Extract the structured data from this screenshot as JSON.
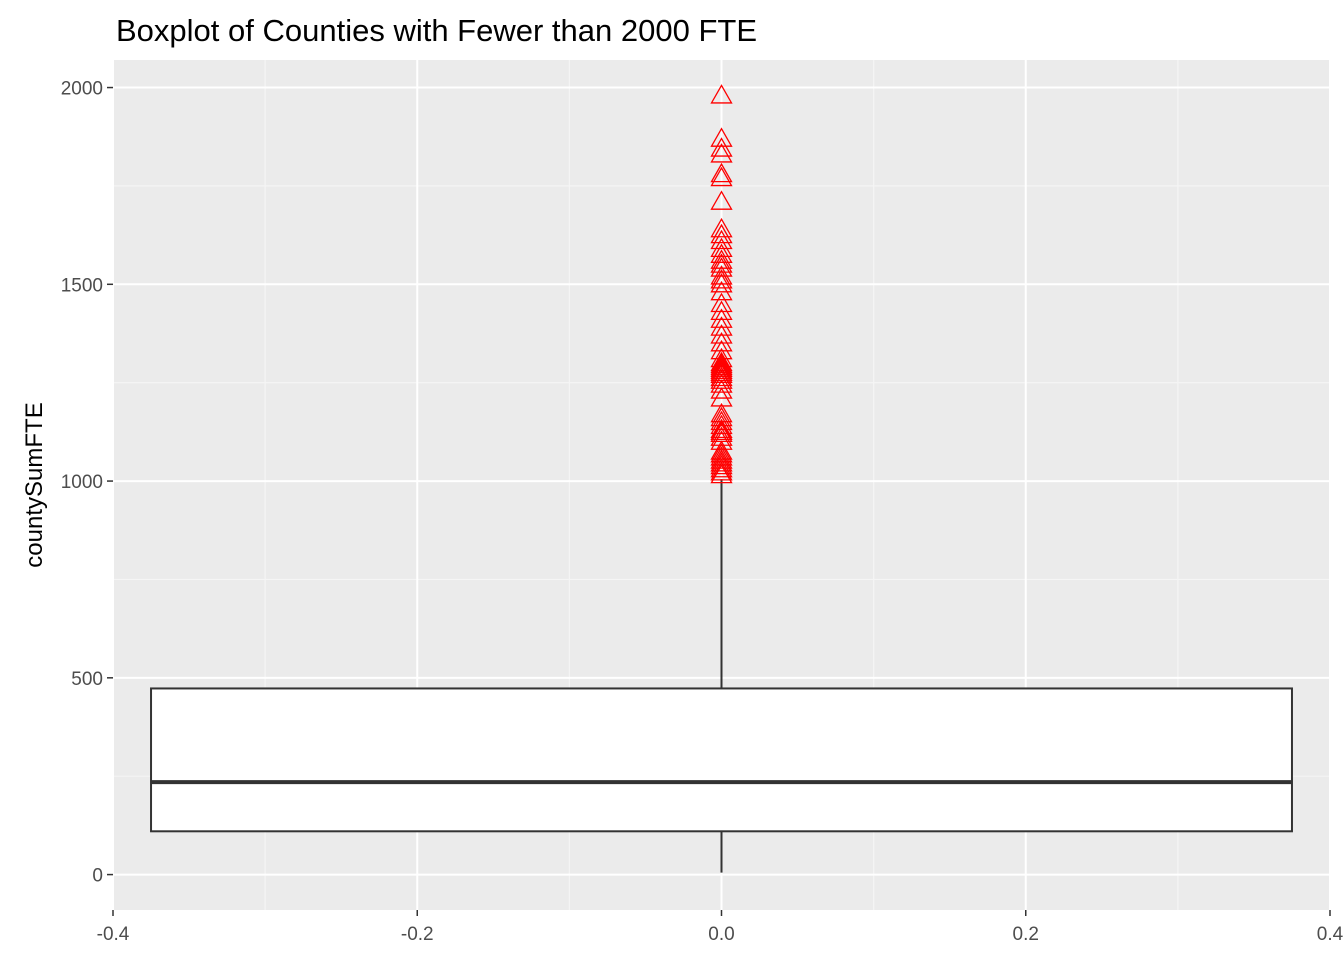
{
  "chart_data": {
    "type": "boxplot",
    "title": "Boxplot of Counties with Fewer than 2000 FTE",
    "xlabel": "",
    "ylabel": "countySumFTE",
    "xlim": [
      -0.4,
      0.4
    ],
    "ylim": [
      -90,
      2070
    ],
    "x_ticks": [
      {
        "value": -0.4,
        "label": "-0.4"
      },
      {
        "value": -0.2,
        "label": "-0.2"
      },
      {
        "value": 0.0,
        "label": "0.0"
      },
      {
        "value": 0.2,
        "label": "0.2"
      },
      {
        "value": 0.4,
        "label": "0.4"
      }
    ],
    "y_ticks": [
      {
        "value": 0,
        "label": "0"
      },
      {
        "value": 500,
        "label": "500"
      },
      {
        "value": 1000,
        "label": "1000"
      },
      {
        "value": 1500,
        "label": "1500"
      },
      {
        "value": 2000,
        "label": "2000"
      }
    ],
    "box": {
      "x_center": 0.0,
      "x_min": -0.375,
      "x_max": 0.375,
      "whisker_low": 5,
      "q1": 110,
      "median": 235,
      "q3": 473,
      "whisker_high": 1005
    },
    "outliers": [
      1015,
      1022,
      1030,
      1038,
      1045,
      1052,
      1060,
      1068,
      1075,
      1100,
      1110,
      1120,
      1125,
      1130,
      1140,
      1150,
      1160,
      1170,
      1210,
      1230,
      1245,
      1255,
      1262,
      1270,
      1275,
      1280,
      1285,
      1290,
      1295,
      1300,
      1310,
      1330,
      1350,
      1370,
      1390,
      1410,
      1430,
      1450,
      1480,
      1500,
      1510,
      1520,
      1540,
      1550,
      1560,
      1575,
      1590,
      1610,
      1625,
      1640,
      1710,
      1770,
      1780,
      1830,
      1845,
      1870,
      1980
    ],
    "grid": true,
    "legend": "none",
    "colors": {
      "panel_background": "#ebebeb",
      "grid_major": "#ffffff",
      "grid_minor": "#f5f5f5",
      "box_fill": "#ffffff",
      "box_line": "#333333",
      "outlier": "#ff0000",
      "tick_label": "#4d4d4d",
      "tick_mark": "#333333"
    }
  }
}
